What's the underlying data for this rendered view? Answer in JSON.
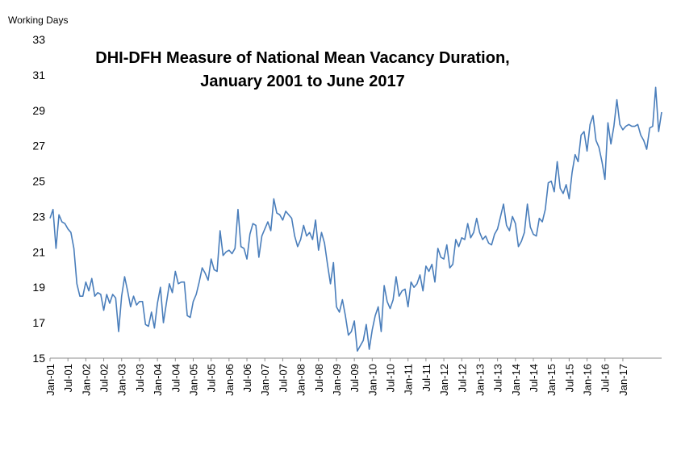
{
  "chart_data": {
    "type": "line",
    "title_line1": "DHI-DFH Measure of National Mean Vacancy Duration,",
    "title_line2": "January 2001 to June 2017",
    "ylabel": "Working Days",
    "xlabel": "",
    "ylim": [
      15,
      33
    ],
    "yticks": [
      15,
      17,
      19,
      21,
      23,
      25,
      27,
      29,
      31,
      33
    ],
    "xtick_labels": [
      "Jan-01",
      "Jul-01",
      "Jan-02",
      "Jul-02",
      "Jan-03",
      "Jul-03",
      "Jan-04",
      "Jul-04",
      "Jan-05",
      "Jul-05",
      "Jan-06",
      "Jul-06",
      "Jan-07",
      "Jul-07",
      "Jan-08",
      "Jul-08",
      "Jan-09",
      "Jul-09",
      "Jan-10",
      "Jul-10",
      "Jan-11",
      "Jul-11",
      "Jan-12",
      "Jul-12",
      "Jan-13",
      "Jul-13",
      "Jan-14",
      "Jul-14",
      "Jan-15",
      "Jul-15",
      "Jan-16",
      "Jul-16",
      "Jan-17"
    ],
    "line_color": "#4a7ebb",
    "grid": false,
    "x_start": "Jan-01",
    "x_end": "Jun-17",
    "series": [
      {
        "values": [
          22.9,
          23.4,
          21.2,
          23.1,
          22.7,
          22.6,
          22.3,
          22.1,
          21.2,
          19.2,
          18.5,
          18.5,
          19.3,
          18.8,
          19.5,
          18.5,
          18.7,
          18.6,
          17.7,
          18.6,
          18.1,
          18.6,
          18.4,
          16.5,
          18.5,
          19.6,
          18.8,
          17.9,
          18.5,
          18.0,
          18.2,
          18.2,
          16.9,
          16.8,
          17.6,
          16.7,
          18.1,
          19.0,
          17.0,
          18.1,
          19.2,
          18.7,
          19.9,
          19.2,
          19.3,
          19.3,
          17.4,
          17.3,
          18.2,
          18.6,
          19.3,
          20.1,
          19.8,
          19.4,
          20.6,
          20.0,
          19.9,
          22.2,
          20.8,
          21.0,
          21.1,
          20.9,
          21.2,
          23.4,
          21.3,
          21.2,
          20.6,
          22.0,
          22.6,
          22.5,
          20.7,
          21.9,
          22.3,
          22.7,
          22.2,
          24.0,
          23.2,
          23.1,
          22.8,
          23.3,
          23.1,
          22.9,
          21.9,
          21.3,
          21.7,
          22.5,
          21.9,
          22.1,
          21.7,
          22.8,
          21.1,
          22.1,
          21.5,
          20.3,
          19.2,
          20.4,
          17.9,
          17.6,
          18.3,
          17.4,
          16.3,
          16.5,
          17.1,
          15.4,
          15.7,
          16.0,
          16.9,
          15.5,
          16.6,
          17.4,
          17.9,
          16.5,
          19.1,
          18.2,
          17.8,
          18.3,
          19.6,
          18.5,
          18.8,
          18.9,
          17.9,
          19.3,
          19.0,
          19.2,
          19.7,
          18.8,
          20.2,
          19.9,
          20.3,
          19.3,
          21.2,
          20.7,
          20.6,
          21.4,
          20.1,
          20.3,
          21.7,
          21.3,
          21.8,
          21.7,
          22.6,
          21.8,
          22.1,
          22.9,
          22.1,
          21.7,
          21.9,
          21.5,
          21.4,
          22.0,
          22.3,
          23.0,
          23.7,
          22.5,
          22.2,
          23.0,
          22.6,
          21.3,
          21.6,
          22.1,
          23.7,
          22.4,
          22.0,
          21.9,
          22.9,
          22.7,
          23.4,
          24.9,
          25.0,
          24.4,
          26.1,
          24.6,
          24.3,
          24.8,
          24.0,
          25.5,
          26.5,
          26.1,
          27.6,
          27.8,
          26.7,
          28.2,
          28.7,
          27.3,
          26.9,
          26.1,
          25.1,
          28.3,
          27.1,
          28.1,
          29.6,
          28.2,
          27.9,
          28.1,
          28.2,
          28.1,
          28.1,
          28.2,
          27.6,
          27.3,
          26.8,
          28.0,
          28.1,
          30.3,
          27.8,
          28.9
        ]
      }
    ]
  }
}
